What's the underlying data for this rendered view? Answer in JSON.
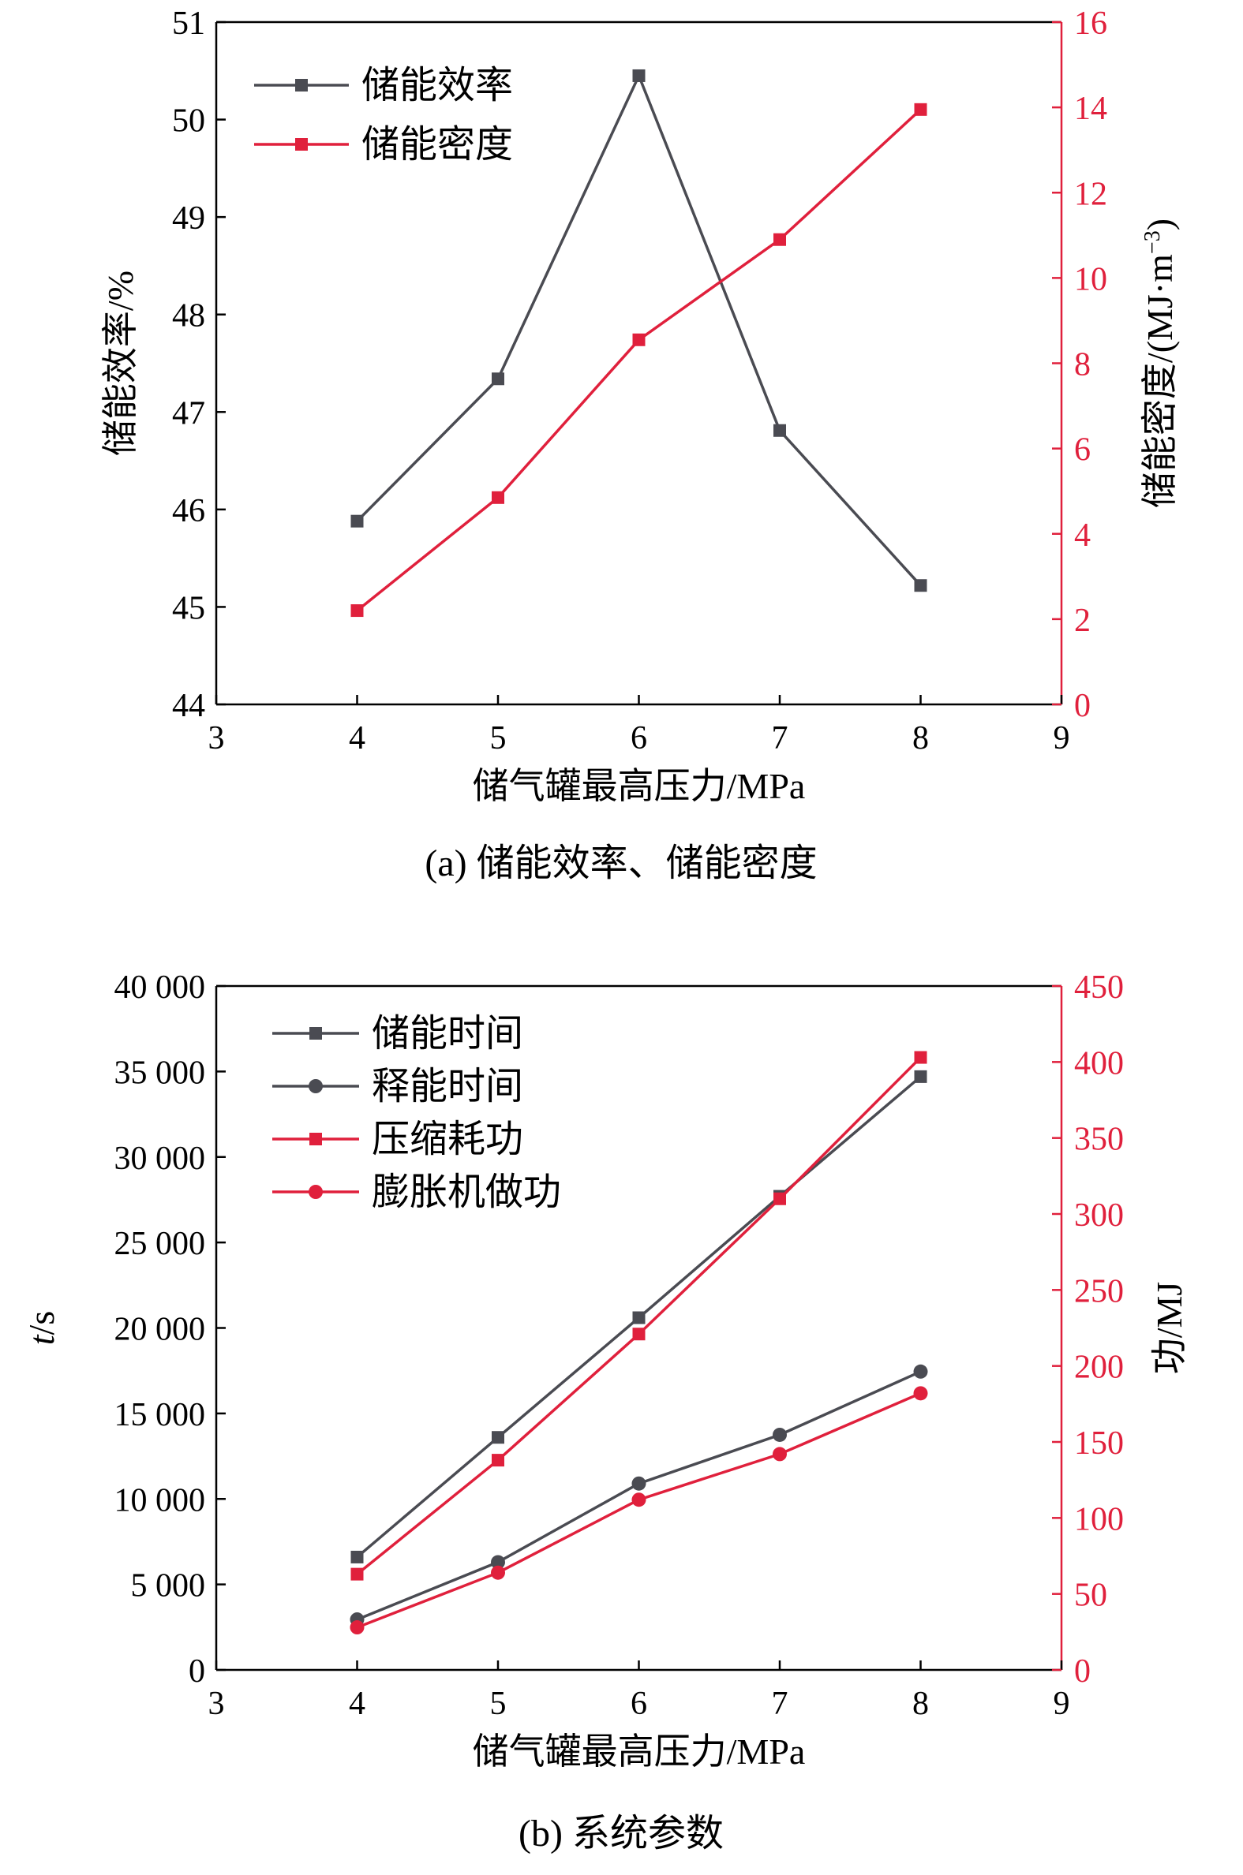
{
  "colors": {
    "dark": "#4a4b52",
    "red": "#e0203c",
    "axis": "#000000"
  },
  "chart_data": [
    {
      "type": "line",
      "caption": "(a) 储能效率、储能密度",
      "xlabel": "储气罐最高压力/MPa",
      "ylabel_left": "储能效率/%",
      "ylabel_right": "储能密度/(MJ·m",
      "ylabel_right_sup": "−3",
      "ylabel_right_close": ")",
      "xlim": [
        3,
        9
      ],
      "xticks": [
        "3",
        "4",
        "5",
        "6",
        "7",
        "8",
        "9"
      ],
      "ylim_left": [
        44,
        51
      ],
      "yticks_left": [
        "44",
        "45",
        "46",
        "47",
        "48",
        "49",
        "50",
        "51"
      ],
      "ylim_right": [
        0,
        16
      ],
      "yticks_right": [
        "0",
        "2",
        "4",
        "6",
        "8",
        "10",
        "12",
        "14",
        "16"
      ],
      "x": [
        4,
        5,
        6,
        7,
        8
      ],
      "legend_position": "top-left",
      "series": [
        {
          "name": "储能效率",
          "axis": "left",
          "marker": "square",
          "color": "#4a4b52",
          "values": [
            45.88,
            47.34,
            50.45,
            46.81,
            45.22
          ]
        },
        {
          "name": "储能密度",
          "axis": "right",
          "marker": "square",
          "color": "#e0203c",
          "values": [
            2.2,
            4.85,
            8.55,
            10.9,
            13.95
          ]
        }
      ]
    },
    {
      "type": "line",
      "caption": "(b) 系统参数",
      "xlabel": "储气罐最高压力/MPa",
      "ylabel_left_italic": "t",
      "ylabel_left_rest": "/s",
      "ylabel_right": "功/MJ",
      "xlim": [
        3,
        9
      ],
      "xticks": [
        "3",
        "4",
        "5",
        "6",
        "7",
        "8",
        "9"
      ],
      "ylim_left": [
        0,
        40000
      ],
      "yticks_left": [
        "0",
        "5 000",
        "10 000",
        "15 000",
        "20 000",
        "25 000",
        "30 000",
        "35 000",
        "40 000"
      ],
      "ylim_right": [
        0,
        450
      ],
      "yticks_right": [
        "0",
        "50",
        "100",
        "150",
        "200",
        "250",
        "300",
        "350",
        "400",
        "450"
      ],
      "x": [
        4,
        5,
        6,
        7,
        8
      ],
      "legend_position": "top-left",
      "series": [
        {
          "name": "储能时间",
          "axis": "left",
          "marker": "square",
          "color": "#4a4b52",
          "values": [
            6600,
            13600,
            20600,
            27700,
            34700
          ]
        },
        {
          "name": "释能时间",
          "axis": "left",
          "marker": "circle",
          "color": "#4a4b52",
          "values": [
            2950,
            6300,
            10900,
            13750,
            17450
          ]
        },
        {
          "name": "压缩耗功",
          "axis": "right",
          "marker": "square",
          "color": "#e0203c",
          "values": [
            63,
            138,
            221,
            310,
            403
          ]
        },
        {
          "name": "膨胀机做功",
          "axis": "right",
          "marker": "circle",
          "color": "#e0203c",
          "values": [
            28,
            64,
            112,
            142,
            182
          ]
        }
      ]
    }
  ]
}
